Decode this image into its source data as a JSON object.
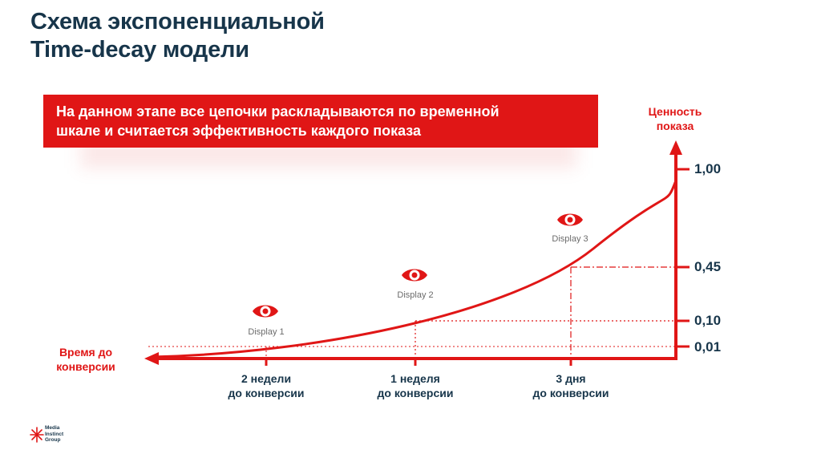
{
  "title": {
    "line1": "Схема экспоненциальной",
    "line2": "Time-decay модели"
  },
  "banner": {
    "line1": "На данном этапе все цепочки раскладываются по временной",
    "line2": "шкале и считается эффективность каждого показа"
  },
  "y_axis": {
    "title_line1": "Ценность",
    "title_line2": "показа",
    "ticks": [
      "1,00",
      "0,45",
      "0,10",
      "0,01"
    ]
  },
  "x_axis": {
    "title_line1": "Время до",
    "title_line2": "конверсии",
    "labels": [
      {
        "line1": "2 недели",
        "line2": "до конверсии"
      },
      {
        "line1": "1 неделя",
        "line2": "до конверсии"
      },
      {
        "line1": "3 дня",
        "line2": "до конверсии"
      }
    ]
  },
  "displays": [
    {
      "label": "Display 1",
      "value": 0.01,
      "icon": "eye-icon"
    },
    {
      "label": "Display 2",
      "value": 0.1,
      "icon": "eye-icon"
    },
    {
      "label": "Display 3",
      "value": 0.45,
      "icon": "eye-icon"
    }
  ],
  "logo": {
    "line1": "Media",
    "line2": "Instinct",
    "line3": "Group"
  },
  "colors": {
    "accent": "#e01616",
    "text_dark": "#17354a"
  }
}
